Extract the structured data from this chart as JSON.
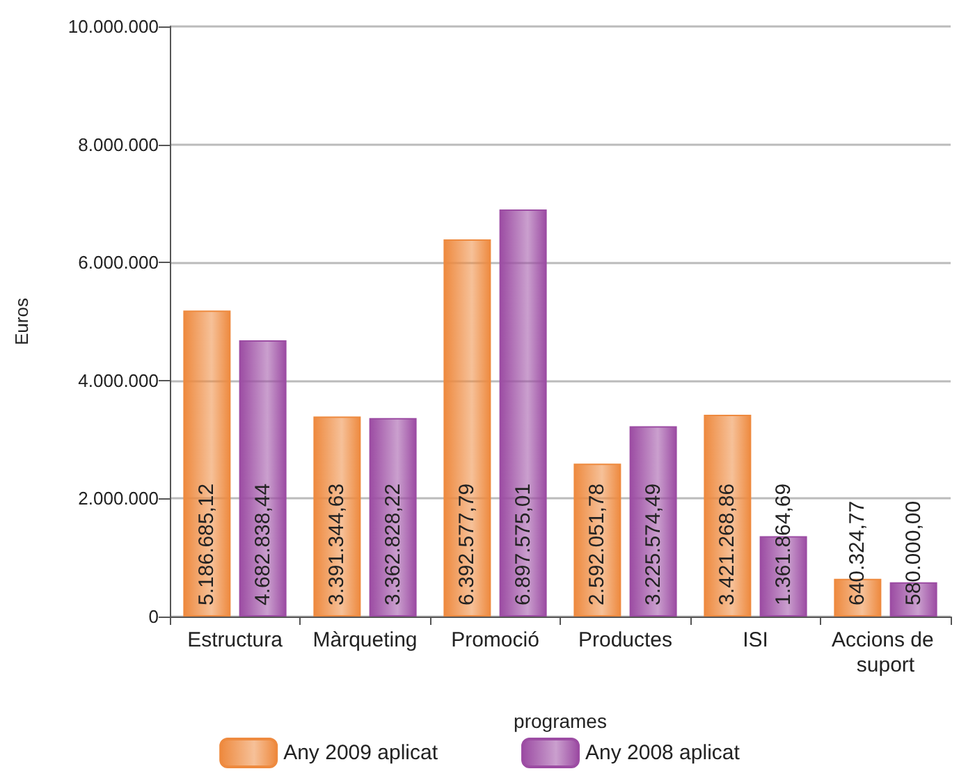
{
  "chart_data": {
    "type": "bar",
    "xlabel": "programes",
    "ylabel": "Euros",
    "categories": [
      "Estructura",
      "Màrqueting",
      "Promoció",
      "Productes",
      "ISI",
      "Accions de suport"
    ],
    "series": [
      {
        "name": "Any 2009 aplicat",
        "color": "#ee8a3f",
        "values": [
          5186685.12,
          3391344.63,
          6392577.79,
          2592051.78,
          3421268.86,
          640324.77
        ],
        "value_labels": [
          "5.186.685,12",
          "3.391.344,63",
          "6.392.577,79",
          "2.592.051,78",
          "3.421.268,86",
          "640.324,77"
        ]
      },
      {
        "name": "Any 2008 aplicat",
        "color": "#9c4ca3",
        "values": [
          4682838.44,
          3362828.22,
          6897575.01,
          3225574.49,
          1361864.69,
          580000.0
        ],
        "value_labels": [
          "4.682.838,44",
          "3.362.828,22",
          "6.897.575,01",
          "3.225.574,49",
          "1.361.864,69",
          "580.000,00"
        ]
      }
    ],
    "ylim": [
      0,
      10000000
    ],
    "yticks": [
      {
        "value": 0,
        "label": "0"
      },
      {
        "value": 2000000,
        "label": "2.000.000"
      },
      {
        "value": 4000000,
        "label": "4.000.000"
      },
      {
        "value": 6000000,
        "label": "6.000.000"
      },
      {
        "value": 8000000,
        "label": "8.000.000"
      },
      {
        "value": 10000000,
        "label": "10.000.000"
      }
    ],
    "grid": "y",
    "legend": "bottom"
  }
}
